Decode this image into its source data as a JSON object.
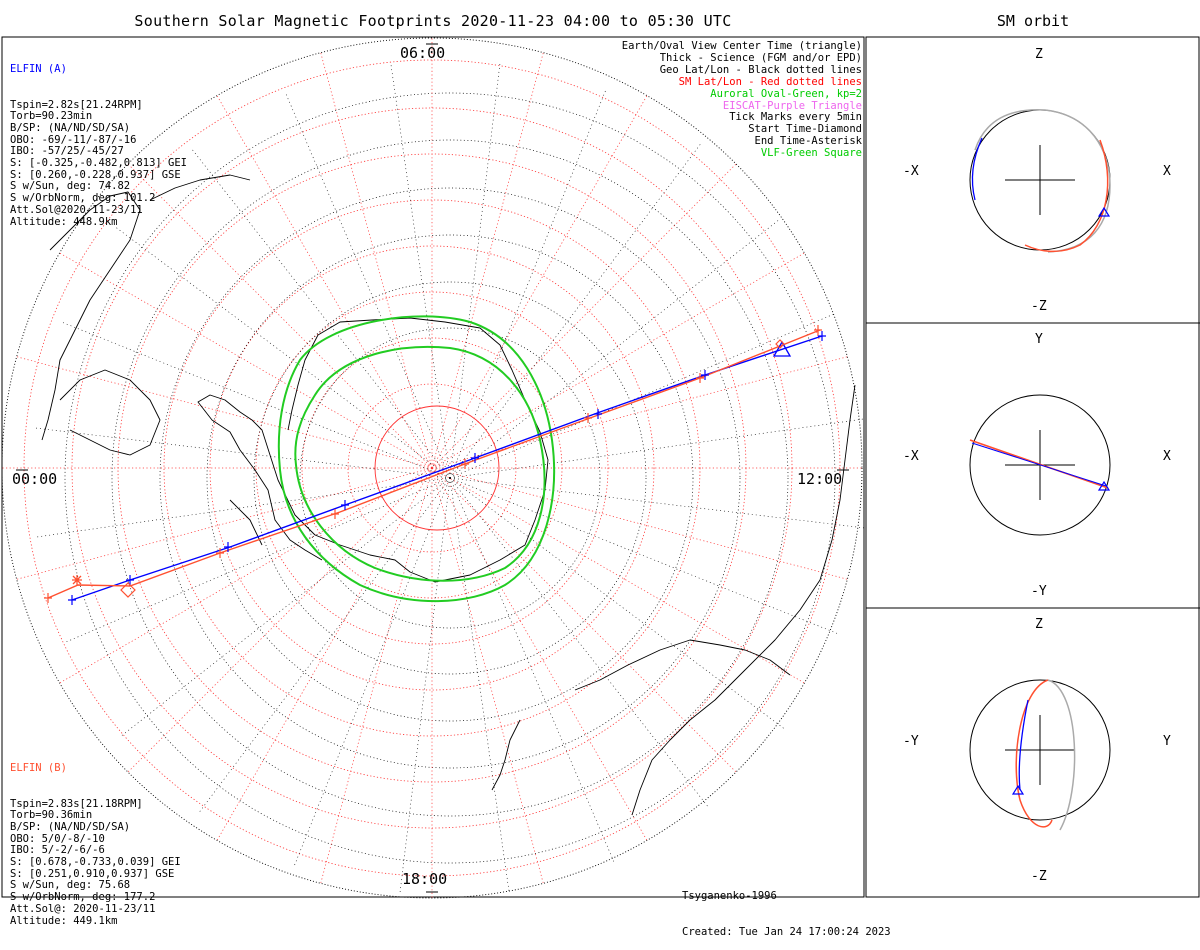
{
  "title": "Southern Solar Magnetic Footprints 2020-11-23 04:00 to 05:30 UTC",
  "side_title": "SM orbit",
  "time_labels": {
    "top": "06:00",
    "left": "00:00",
    "right": "12:00",
    "bottom": "18:00"
  },
  "elfin_a": {
    "header": "ELFIN (A)",
    "lines": [
      "Tspin=2.82s[21.24RPM]",
      "Torb=90.23min",
      "B/SP: (NA/ND/SD/SA)",
      "OBO: -69/-11/-87/-16",
      "IBO: -57/25/-45/27",
      "S: [-0.325,-0.482,0.813] GEI",
      "S: [0.260,-0.228,0.937] GSE",
      "S w/Sun, deg: 74.82",
      "S w/OrbNorm, deg: 101.2",
      "Att.Sol@2020-11-23/11",
      "Altitude: 448.9km"
    ],
    "color": "#0000ff"
  },
  "elfin_b": {
    "header": "ELFIN (B)",
    "lines": [
      "Tspin=2.83s[21.18RPM]",
      "Torb=90.36min",
      "B/SP: (NA/ND/SD/SA)",
      "OBO: 5/0/-8/-10",
      "IBO: 5/-2/-6/-6",
      "S: [0.678,-0.733,0.039] GEI",
      "S: [0.251,0.910,0.937] GSE",
      "S w/Sun, deg: 75.68",
      "S w/OrbNorm, deg: 177.2",
      "Att.Sol@: 2020-11-23/11",
      "Altitude: 449.1km"
    ],
    "color": "#ff5030"
  },
  "legend": [
    {
      "text": "Earth/Oval View Center Time (triangle)",
      "color": "#000000"
    },
    {
      "text": "Thick - Science (FGM and/or EPD)",
      "color": "#000000"
    },
    {
      "text": "Geo Lat/Lon - Black dotted lines",
      "color": "#000000"
    },
    {
      "text": "SM Lat/Lon - Red dotted lines",
      "color": "#ff0000"
    },
    {
      "text": "Auroral Oval-Green, kp=2",
      "color": "#00cc00"
    },
    {
      "text": "EISCAT-Purple Triangle",
      "color": "#ee66ee"
    },
    {
      "text": "Tick Marks every 5min",
      "color": "#000000"
    },
    {
      "text": "Start Time-Diamond",
      "color": "#000000"
    },
    {
      "text": "End Time-Asterisk",
      "color": "#000000"
    },
    {
      "text": "VLF-Green Square",
      "color": "#00cc00"
    }
  ],
  "credit": {
    "model": "Tsyganenko-1996",
    "created": "Created: Tue Jan 24 17:00:24 2023"
  },
  "orbit_panels": [
    {
      "top": "Z",
      "bottom": "-Z",
      "left": "-X",
      "right": "X"
    },
    {
      "top": "Y",
      "bottom": "-Y",
      "left": "-X",
      "right": "X"
    },
    {
      "top": "Z",
      "bottom": "-Z",
      "left": "-Y",
      "right": "Y"
    }
  ],
  "colors": {
    "elfin_a": "#0000ff",
    "elfin_b": "#ff5030",
    "oval": "#22cc22",
    "sm_grid": "#ff3030",
    "geo_grid": "#000000"
  }
}
